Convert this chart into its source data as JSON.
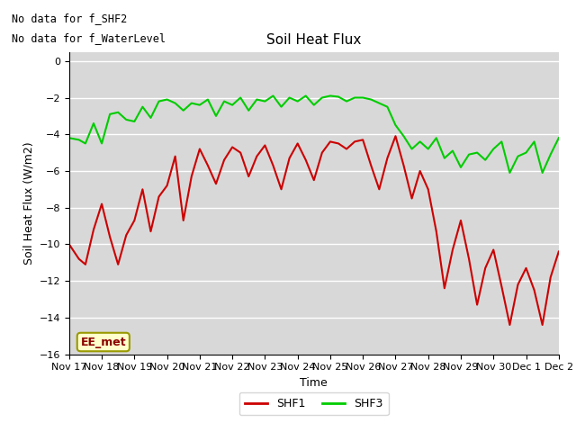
{
  "title": "Soil Heat Flux",
  "xlabel": "Time",
  "ylabel": "Soil Heat Flux (W/m2)",
  "ylim": [
    -16,
    0.5
  ],
  "yticks": [
    0,
    -2,
    -4,
    -6,
    -8,
    -10,
    -12,
    -14,
    -16
  ],
  "background_color": "#d8d8d8",
  "annotations": [
    "No data for f_SHF2",
    "No data for f_WaterLevel"
  ],
  "ee_met_label": "EE_met",
  "legend_labels": [
    "SHF1",
    "SHF3"
  ],
  "shf1_color": "#cc0000",
  "shf3_color": "#00cc00",
  "xtick_labels": [
    "Nov 17",
    "Nov 18",
    "Nov 19",
    "Nov 20",
    "Nov 21",
    "Nov 22",
    "Nov 23",
    "Nov 24",
    "Nov 25",
    "Nov 26",
    "Nov 27",
    "Nov 28",
    "Nov 29",
    "Nov 30",
    "Dec 1",
    "Dec 2"
  ],
  "shf1_x": [
    0,
    0.3,
    0.5,
    0.75,
    1.0,
    1.25,
    1.5,
    1.75,
    2.0,
    2.25,
    2.5,
    2.75,
    3.0,
    3.25,
    3.5,
    3.75,
    4.0,
    4.25,
    4.5,
    4.75,
    5.0,
    5.25,
    5.5,
    5.75,
    6.0,
    6.25,
    6.5,
    6.75,
    7.0,
    7.25,
    7.5,
    7.75,
    8.0,
    8.25,
    8.5,
    8.75,
    9.0,
    9.25,
    9.5,
    9.75,
    10.0,
    10.25,
    10.5,
    10.75,
    11.0,
    11.25,
    11.5,
    11.75,
    12.0,
    12.25,
    12.5,
    12.75,
    13.0,
    13.25,
    13.5,
    13.75,
    14.0,
    14.25,
    14.5,
    14.75,
    15.0
  ],
  "shf1_y": [
    -10.0,
    -10.8,
    -11.1,
    -9.2,
    -7.8,
    -9.6,
    -11.1,
    -9.5,
    -8.7,
    -7.0,
    -9.3,
    -7.4,
    -6.8,
    -5.2,
    -8.7,
    -6.3,
    -4.8,
    -5.7,
    -6.7,
    -5.4,
    -4.7,
    -5.0,
    -6.3,
    -5.2,
    -4.6,
    -5.7,
    -7.0,
    -5.3,
    -4.5,
    -5.4,
    -6.5,
    -5.0,
    -4.4,
    -4.5,
    -4.8,
    -4.4,
    -4.3,
    -5.7,
    -7.0,
    -5.3,
    -4.1,
    -5.7,
    -7.5,
    -6.0,
    -7.0,
    -9.3,
    -12.4,
    -10.3,
    -8.7,
    -10.8,
    -13.3,
    -11.3,
    -10.3,
    -12.3,
    -14.4,
    -12.2,
    -11.3,
    -12.5,
    -14.4,
    -11.8,
    -10.4
  ],
  "shf3_x": [
    0,
    0.3,
    0.5,
    0.75,
    1.0,
    1.25,
    1.5,
    1.75,
    2.0,
    2.25,
    2.5,
    2.75,
    3.0,
    3.25,
    3.5,
    3.75,
    4.0,
    4.25,
    4.5,
    4.75,
    5.0,
    5.25,
    5.5,
    5.75,
    6.0,
    6.25,
    6.5,
    6.75,
    7.0,
    7.25,
    7.5,
    7.75,
    8.0,
    8.25,
    8.5,
    8.75,
    9.0,
    9.25,
    9.5,
    9.75,
    10.0,
    10.25,
    10.5,
    10.75,
    11.0,
    11.25,
    11.5,
    11.75,
    12.0,
    12.25,
    12.5,
    12.75,
    13.0,
    13.25,
    13.5,
    13.75,
    14.0,
    14.25,
    14.5,
    14.75,
    15.0
  ],
  "shf3_y": [
    -4.2,
    -4.3,
    -4.5,
    -3.4,
    -4.5,
    -2.9,
    -2.8,
    -3.2,
    -3.3,
    -2.5,
    -3.1,
    -2.2,
    -2.1,
    -2.3,
    -2.7,
    -2.3,
    -2.4,
    -2.1,
    -3.0,
    -2.2,
    -2.4,
    -2.0,
    -2.7,
    -2.1,
    -2.2,
    -1.9,
    -2.5,
    -2.0,
    -2.2,
    -1.9,
    -2.4,
    -2.0,
    -1.9,
    -1.95,
    -2.2,
    -2.0,
    -2.0,
    -2.1,
    -2.3,
    -2.5,
    -3.5,
    -4.1,
    -4.8,
    -4.4,
    -4.8,
    -4.2,
    -5.3,
    -4.9,
    -5.8,
    -5.1,
    -5.0,
    -5.4,
    -4.8,
    -4.4,
    -6.1,
    -5.2,
    -5.0,
    -4.4,
    -6.1,
    -5.1,
    -4.2
  ]
}
